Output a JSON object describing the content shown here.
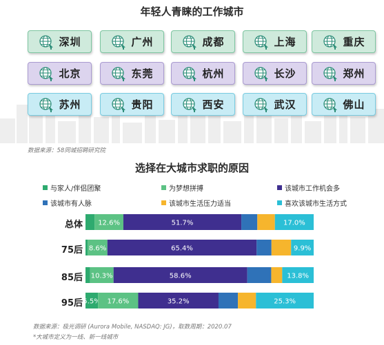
{
  "cities": {
    "title": "年轻人青睐的工作城市",
    "rows": [
      {
        "style": "g",
        "items": [
          "深圳",
          "广州",
          "成都",
          "上海",
          "重庆"
        ]
      },
      {
        "style": "p",
        "items": [
          "北京",
          "东莞",
          "杭州",
          "长沙",
          "郑州"
        ]
      },
      {
        "style": "b",
        "items": [
          "苏州",
          "贵阳",
          "西安",
          "武汉",
          "佛山"
        ]
      }
    ],
    "source": "数据来源：58同城招聘研究院"
  },
  "colors": {
    "family": "#2eaa6f",
    "dream": "#5cc284",
    "opportunity": "#3f2f8f",
    "connections": "#2f72b8",
    "pressure": "#f6b52d",
    "lifestyle": "#2bbfd6"
  },
  "chart_data": {
    "type": "bar",
    "orientation": "horizontal",
    "stacked": true,
    "title": "选择在大城市求职的原因",
    "categories": [
      "总体",
      "75后",
      "85后",
      "95后"
    ],
    "xlim": [
      0,
      100
    ],
    "legend_position": "top",
    "series": [
      {
        "name": "与家人/伴侣团聚",
        "color_key": "family",
        "values": [
          4.0,
          1.0,
          2.0,
          5.5
        ],
        "labels": [
          "",
          "",
          "",
          "5.5%"
        ]
      },
      {
        "name": "为梦想拼搏",
        "color_key": "dream",
        "values": [
          12.6,
          8.6,
          10.3,
          17.6
        ],
        "labels": [
          "12.6%",
          "8.6%",
          "10.3%",
          "17.6%"
        ]
      },
      {
        "name": "该城市工作机会多",
        "color_key": "opportunity",
        "values": [
          51.7,
          65.4,
          58.6,
          35.2
        ],
        "labels": [
          "51.7%",
          "65.4%",
          "58.6%",
          "35.2%"
        ]
      },
      {
        "name": "该城市有人脉",
        "color_key": "connections",
        "values": [
          7.0,
          6.5,
          10.5,
          8.5
        ],
        "labels": [
          "",
          "",
          "",
          ""
        ]
      },
      {
        "name": "该城市生活压力适当",
        "color_key": "pressure",
        "values": [
          7.7,
          8.6,
          4.8,
          7.9
        ],
        "labels": [
          "",
          "",
          "",
          ""
        ]
      },
      {
        "name": "喜欢该城市生活方式",
        "color_key": "lifestyle",
        "values": [
          17.0,
          9.9,
          13.8,
          25.3
        ],
        "labels": [
          "17.0%",
          "9.9%",
          "13.8%",
          "25.3%"
        ]
      }
    ]
  },
  "footer": {
    "source": "数据来源：极光调研 (Aurora Mobile, NASDAQ: JG)，取数周期：2020.07",
    "note": "*大城市定义为一线、新一线城市"
  }
}
